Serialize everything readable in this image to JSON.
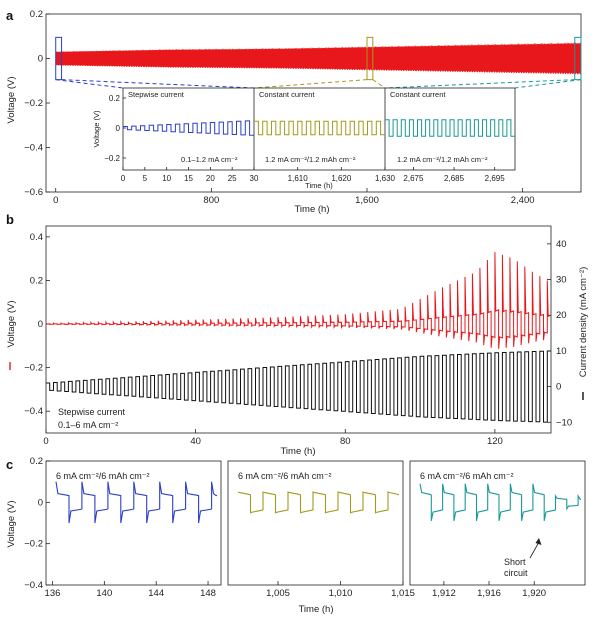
{
  "chart_data": [
    {
      "panel": "a",
      "type": "line",
      "xlabel": "Time (h)",
      "ylabel": "Voltage (V)",
      "xlim": [
        -50,
        2700
      ],
      "ylim": [
        -0.6,
        0.2
      ],
      "xticks": [
        "0",
        "800",
        "1,600",
        "2,400"
      ],
      "xtick_values": [
        0,
        800,
        1600,
        2400
      ],
      "yticks": [
        "0.2",
        "0",
        "−0.2",
        "−0.4",
        "−0.6"
      ],
      "ytick_values": [
        0.2,
        0,
        -0.2,
        -0.4,
        -0.6
      ],
      "series": [
        {
          "color": "#e8171b",
          "x": [
            0,
            300,
            600,
            900,
            1200,
            1500,
            1800,
            2100,
            2400,
            2700
          ],
          "y_max": [
            0.03,
            0.035,
            0.04,
            0.042,
            0.045,
            0.05,
            0.055,
            0.06,
            0.065,
            0.07
          ],
          "y_min": [
            -0.03,
            -0.035,
            -0.04,
            -0.042,
            -0.045,
            -0.05,
            -0.055,
            -0.06,
            -0.065,
            -0.07
          ]
        }
      ],
      "insets": [
        {
          "label": "Stepwise current",
          "note": "0.1–1.2 mA cm⁻²",
          "color": "#2b3fc9",
          "xlim": [
            0,
            30
          ],
          "xticks": [
            "0",
            "5",
            "10",
            "15",
            "20",
            "25",
            "30"
          ],
          "xtick_values": [
            0,
            5,
            10,
            15,
            20,
            25,
            30
          ],
          "ylim": [
            -0.2,
            0.2
          ],
          "yticks": [
            "0.2",
            "0",
            "−0.2"
          ],
          "ytick_values": [
            0.2,
            0,
            -0.2
          ],
          "ylabel": "Voltage (V)",
          "cycle_period": 2,
          "amplitude_start": 0.01,
          "amplitude_end": 0.05
        },
        {
          "label": "Constant current",
          "note": "1.2 mA cm⁻²/1.2 mAh cm⁻²",
          "color": "#a49a1a",
          "xlim": [
            1600,
            1630
          ],
          "xticks": [
            "1,610",
            "1,620",
            "1,630"
          ],
          "xtick_values": [
            1610,
            1620,
            1630
          ],
          "cycle_period": 2,
          "amplitude_start": 0.045,
          "amplitude_end": 0.045
        },
        {
          "label": "Constant current",
          "note": "1.2 mA cm⁻²/1.2 mAh cm⁻²",
          "color": "#199a98",
          "xlim": [
            2668,
            2700
          ],
          "xticks": [
            "2,675",
            "2,685",
            "2,695"
          ],
          "xtick_values": [
            2675,
            2685,
            2695
          ],
          "cycle_period": 2,
          "amplitude_start": 0.055,
          "amplitude_end": 0.055
        }
      ],
      "inset_xlabel": "Time (h)"
    },
    {
      "panel": "b",
      "type": "line",
      "xlabel": "Time (h)",
      "ylabel": "Voltage (V)",
      "y2label": "Current density (mA cm⁻²)",
      "xlim": [
        0,
        135
      ],
      "ylim": [
        -0.5,
        0.45
      ],
      "y2lim": [
        -13,
        45
      ],
      "xticks": [
        "0",
        "40",
        "80",
        "120"
      ],
      "xtick_values": [
        0,
        40,
        80,
        120
      ],
      "yticks": [
        "0.4",
        "0.2",
        "0",
        "−0.2",
        "−0.4"
      ],
      "ytick_values": [
        0.4,
        0.2,
        0,
        -0.2,
        -0.4
      ],
      "y2ticks": [
        "40",
        "30",
        "20",
        "10",
        "0",
        "−10"
      ],
      "y2tick_values": [
        40,
        30,
        20,
        10,
        0,
        -10
      ],
      "annotation": [
        "Stepwise current",
        "0.1–6 mA cm⁻²"
      ],
      "series": [
        {
          "kind": "voltage",
          "color": "#e8171b",
          "x": [
            0,
            20,
            40,
            60,
            80,
            95,
            105,
            110,
            115,
            120,
            125,
            130,
            135
          ],
          "peak_voltage": [
            0.003,
            0.01,
            0.02,
            0.03,
            0.045,
            0.07,
            0.16,
            0.2,
            0.24,
            0.33,
            0.3,
            0.24,
            0.19
          ]
        },
        {
          "kind": "current",
          "color": "#111111",
          "x": [
            0,
            20,
            40,
            60,
            80,
            100,
            120,
            135
          ],
          "current_amplitude": [
            1,
            2.5,
            4,
            5.5,
            7,
            8.5,
            9.5,
            10
          ]
        }
      ],
      "cycle_period": 2
    },
    {
      "panel": "c",
      "type": "line",
      "xlabel": "Time (h)",
      "ylabel": "Voltage (V)",
      "ylim": [
        -0.4,
        0.2
      ],
      "yticks": [
        "0.2",
        "0",
        "−0.2",
        "−0.4"
      ],
      "ytick_values": [
        0.2,
        0,
        -0.2,
        -0.4
      ],
      "subplots": [
        {
          "label": "6 mA cm⁻²/6 mAh cm⁻²",
          "color": "#2b3fc9",
          "xlim": [
            135.5,
            149
          ],
          "xticks": [
            "136",
            "140",
            "144",
            "148"
          ],
          "xtick_values": [
            136,
            140,
            144,
            148
          ],
          "cycle_period": 2,
          "peak": 0.1,
          "plateau": 0.04
        },
        {
          "label": "6 mA cm⁻²/6 mAh cm⁻²",
          "color": "#a49a1a",
          "xlim": [
            1001,
            1015
          ],
          "xticks": [
            "1,005",
            "1,010",
            "1,015"
          ],
          "xtick_values": [
            1005,
            1010,
            1015
          ],
          "cycle_period": 2,
          "peak": 0.05,
          "plateau": 0.045
        },
        {
          "label": "6 mA cm⁻²/6 mAh cm⁻²",
          "color": "#199a98",
          "xlim": [
            1909,
            1924.5
          ],
          "xticks": [
            "1,912",
            "1,916",
            "1,920"
          ],
          "xtick_values": [
            1912,
            1916,
            1920
          ],
          "cycle_period": 2,
          "peak": 0.09,
          "plateau": 0.045,
          "short_circuit_at": 1921
        }
      ],
      "annotation": "Short circuit",
      "annotation_lines": [
        "Short",
        "circuit"
      ]
    }
  ],
  "panel_letters": [
    "a",
    "b",
    "c"
  ]
}
